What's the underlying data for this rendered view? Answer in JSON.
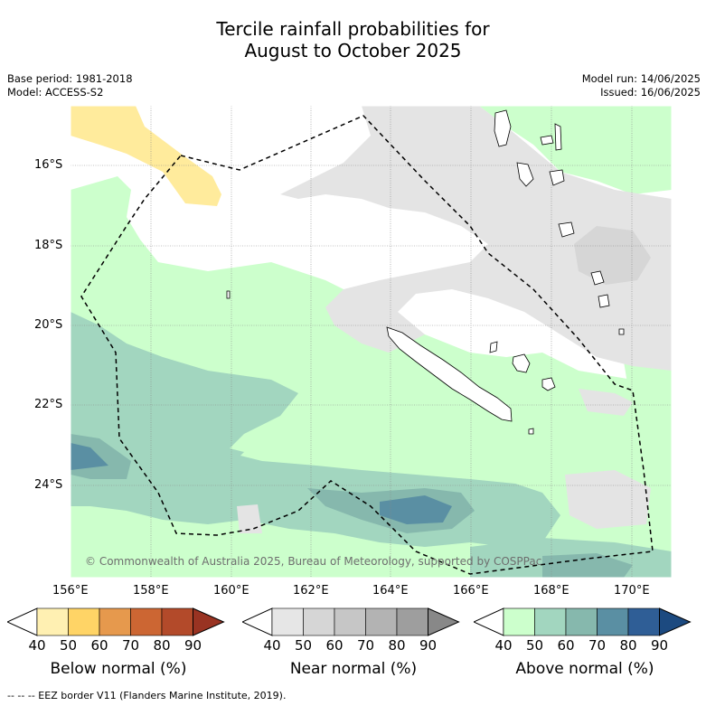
{
  "title_line1": "Tercile rainfall probabilities for",
  "title_line2": "August to October 2025",
  "meta_left": {
    "base_period": "Base period: 1981-2018",
    "model": "Model: ACCESS-S2"
  },
  "meta_right": {
    "model_run": "Model run: 14/06/2025",
    "issued": "Issued: 16/06/2025"
  },
  "map": {
    "lat_labels": [
      "16°S",
      "18°S",
      "20°S",
      "22°S",
      "24°S"
    ],
    "lon_labels": [
      "156°E",
      "158°E",
      "160°E",
      "162°E",
      "164°E",
      "166°E",
      "168°E",
      "170°E"
    ],
    "copyright": "© Commonwealth of Australia 2025, Bureau of Meteorology, supported by COSPPac"
  },
  "colorbars": [
    {
      "title": "Below normal (%)",
      "ticks": [
        "40",
        "50",
        "60",
        "70",
        "80",
        "90"
      ],
      "colors": [
        "#fff0b2",
        "#ffd466",
        "#e6994d",
        "#cc6633",
        "#b34a2a",
        "#993322"
      ]
    },
    {
      "title": "Near normal (%)",
      "ticks": [
        "40",
        "50",
        "60",
        "70",
        "80",
        "90"
      ],
      "colors": [
        "#e6e6e6",
        "#d6d6d6",
        "#c6c6c6",
        "#b3b3b3",
        "#9e9e9e",
        "#888888"
      ]
    },
    {
      "title": "Above normal (%)",
      "ticks": [
        "40",
        "50",
        "60",
        "70",
        "80",
        "90"
      ],
      "colors": [
        "#ccffcc",
        "#a2d6bf",
        "#86b8ad",
        "#5a8fa3",
        "#2f5e96",
        "#1c4a80"
      ]
    }
  ],
  "footnote": "--  --  -- EEZ border V11 (Flanders Marine Institute, 2019)."
}
